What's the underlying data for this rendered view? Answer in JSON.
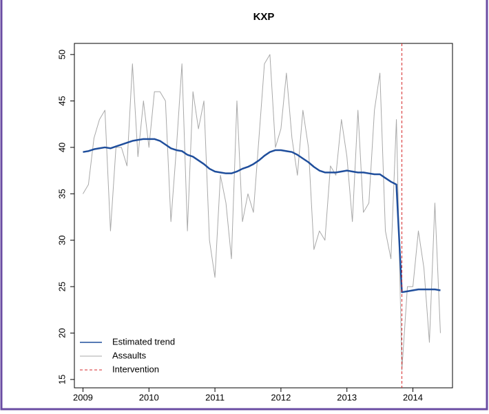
{
  "chart_data": {
    "type": "line",
    "title": "KXP",
    "x": [
      2009,
      2009.083,
      2009.167,
      2009.25,
      2009.333,
      2009.417,
      2009.5,
      2009.583,
      2009.667,
      2009.75,
      2009.833,
      2009.917,
      2010,
      2010.083,
      2010.167,
      2010.25,
      2010.333,
      2010.417,
      2010.5,
      2010.583,
      2010.667,
      2010.75,
      2010.833,
      2010.917,
      2011,
      2011.083,
      2011.167,
      2011.25,
      2011.333,
      2011.417,
      2011.5,
      2011.583,
      2011.667,
      2011.75,
      2011.833,
      2011.917,
      2012,
      2012.083,
      2012.167,
      2012.25,
      2012.333,
      2012.417,
      2012.5,
      2012.583,
      2012.667,
      2012.75,
      2012.833,
      2012.917,
      2013,
      2013.083,
      2013.167,
      2013.25,
      2013.333,
      2013.417,
      2013.5,
      2013.583,
      2013.667,
      2013.75,
      2013.833,
      2013.917,
      2014,
      2014.083,
      2014.167,
      2014.25,
      2014.333,
      2014.417
    ],
    "series": [
      {
        "name": "Estimated trend",
        "color": "#1f4e9c",
        "width": 2.5,
        "values": [
          39.5,
          39.6,
          39.8,
          39.9,
          40,
          39.9,
          40.1,
          40.3,
          40.5,
          40.7,
          40.8,
          40.9,
          40.9,
          40.9,
          40.7,
          40.3,
          39.9,
          39.7,
          39.6,
          39.2,
          39,
          38.6,
          38.2,
          37.7,
          37.4,
          37.3,
          37.2,
          37.2,
          37.4,
          37.7,
          37.9,
          38.2,
          38.6,
          39.1,
          39.5,
          39.7,
          39.7,
          39.6,
          39.5,
          39.2,
          38.8,
          38.4,
          37.9,
          37.5,
          37.3,
          37.3,
          37.3,
          37.4,
          37.5,
          37.4,
          37.3,
          37.3,
          37.2,
          37.1,
          37.1,
          36.7,
          36.3,
          36,
          24.4,
          24.5,
          24.6,
          24.7,
          24.7,
          24.7,
          24.7,
          24.6
        ]
      },
      {
        "name": "Assaults",
        "color": "#a8a8a8",
        "width": 1,
        "values": [
          35,
          36,
          41,
          43,
          44,
          31,
          40,
          40,
          38,
          49,
          39,
          45,
          40,
          46,
          46,
          45,
          32,
          40,
          49,
          31,
          46,
          42,
          45,
          30,
          26,
          37,
          34,
          28,
          45,
          32,
          35,
          33,
          41,
          49,
          50,
          40,
          42,
          48,
          41,
          37,
          44,
          40,
          29,
          31,
          30,
          38,
          37,
          43,
          39,
          32,
          44,
          33,
          34,
          44,
          48,
          31,
          28,
          43,
          16,
          25,
          25,
          31,
          27,
          19,
          34,
          20
        ]
      }
    ],
    "intervention": {
      "name": "Intervention",
      "x": 2013.833,
      "color": "#d62728"
    },
    "xlim": [
      2008.87,
      2014.6
    ],
    "xticks": [
      2009,
      2010,
      2011,
      2012,
      2013,
      2014
    ],
    "ylim": [
      14.1,
      51.2
    ],
    "yticks": [
      15,
      20,
      25,
      30,
      35,
      40,
      45,
      50
    ],
    "legend": "bottom-left"
  }
}
